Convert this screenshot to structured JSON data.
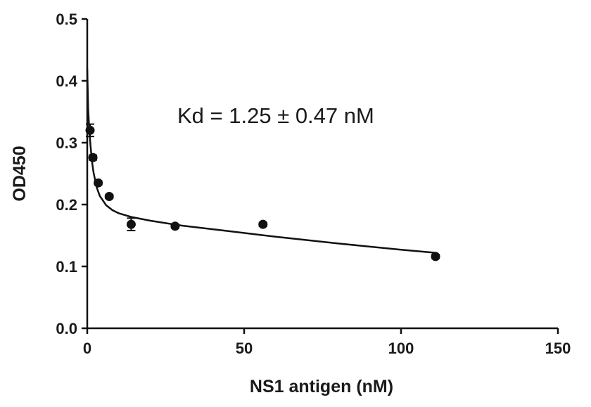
{
  "chart_data": {
    "type": "scatter",
    "title": "",
    "xlabel": "NS1 antigen (nM)",
    "ylabel": "OD450",
    "xlim": [
      0,
      150
    ],
    "ylim": [
      0,
      0.5
    ],
    "x_ticks": [
      0,
      50,
      100,
      150
    ],
    "y_ticks": [
      0.0,
      0.1,
      0.2,
      0.3,
      0.4,
      0.5
    ],
    "x_tick_labels": [
      "0",
      "50",
      "100",
      "150"
    ],
    "y_tick_labels": [
      "0.0",
      "0.1",
      "0.2",
      "0.3",
      "0.4",
      "0.5"
    ],
    "grid": false,
    "legend": "none",
    "annotation": "Kd = 1.25 ± 0.47 nM",
    "series": [
      {
        "x": [
          0.9,
          1.8,
          3.5,
          7.0,
          14.0,
          28.0,
          56.0,
          111.0
        ],
        "y": [
          0.32,
          0.276,
          0.235,
          0.213,
          0.168,
          0.165,
          0.168,
          0.116
        ],
        "error": [
          0.01,
          0.004,
          0.003,
          0.003,
          0.01,
          0.003,
          0.003,
          0.003
        ]
      }
    ],
    "fit_curve": {
      "x": [
        0.0,
        0.3,
        0.6,
        1.0,
        1.5,
        2.0,
        3.0,
        4.0,
        6.0,
        8.0,
        10.0,
        14.0,
        20.0,
        30.0,
        45.0,
        60.0,
        80.0,
        100.0,
        111.0
      ],
      "y": [
        0.42,
        0.355,
        0.325,
        0.297,
        0.27,
        0.252,
        0.228,
        0.214,
        0.199,
        0.191,
        0.186,
        0.18,
        0.174,
        0.166,
        0.157,
        0.148,
        0.137,
        0.127,
        0.122
      ]
    },
    "colors": {
      "ink": "#111111"
    }
  }
}
